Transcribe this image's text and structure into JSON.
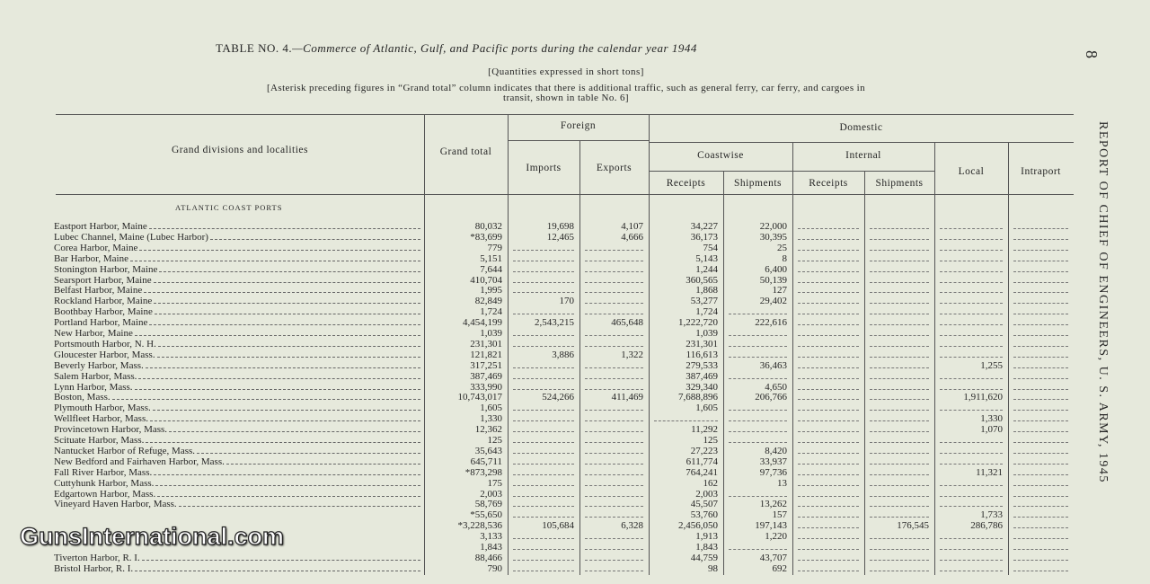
{
  "page_number": "8",
  "running_head": "REPORT OF CHIEF OF ENGINEERS, U. S. ARMY, 1945",
  "watermark": "GunsInternational.com",
  "table": {
    "label": "TABLE NO. 4.",
    "title": "—Commerce of Atlantic, Gulf, and Pacific ports during the calendar year 1944",
    "subtitle": "[Quantities expressed in short tons]",
    "note": "[Asterisk preceding figures in “Grand total” column indicates that there is additional traffic, such as general ferry, car ferry, and cargoes in transit, shown in table No. 6]",
    "headers": {
      "locality": "Grand divisions and localities",
      "grand_total": "Grand total",
      "foreign": "Foreign",
      "imports": "Imports",
      "exports": "Exports",
      "domestic": "Domestic",
      "coastwise": "Coastwise",
      "internal": "Internal",
      "receipts": "Receipts",
      "shipments": "Shipments",
      "local": "Local",
      "intraport": "Intraport"
    },
    "section": "ATLANTIC COAST PORTS",
    "rows": [
      [
        "Eastport Harbor, Maine",
        "80,032",
        "19,698",
        "4,107",
        "34,227",
        "22,000",
        null,
        null,
        null,
        null
      ],
      [
        "Lubec Channel, Maine (Lubec Harbor)",
        "*83,699",
        "12,465",
        "4,666",
        "36,173",
        "30,395",
        null,
        null,
        null,
        null
      ],
      [
        "Corea Harbor, Maine",
        "779",
        null,
        null,
        "754",
        "25",
        null,
        null,
        null,
        null
      ],
      [
        "Bar Harbor, Maine",
        "5,151",
        null,
        null,
        "5,143",
        "8",
        null,
        null,
        null,
        null
      ],
      [
        "Stonington Harbor, Maine",
        "7,644",
        null,
        null,
        "1,244",
        "6,400",
        null,
        null,
        null,
        null
      ],
      [
        "Searsport Harbor, Maine",
        "410,704",
        null,
        null,
        "360,565",
        "50,139",
        null,
        null,
        null,
        null
      ],
      [
        "Belfast Harbor, Maine",
        "1,995",
        null,
        null,
        "1,868",
        "127",
        null,
        null,
        null,
        null
      ],
      [
        "Rockland Harbor, Maine",
        "82,849",
        "170",
        null,
        "53,277",
        "29,402",
        null,
        null,
        null,
        null
      ],
      [
        "Boothbay Harbor, Maine",
        "1,724",
        null,
        null,
        "1,724",
        null,
        null,
        null,
        null,
        null
      ],
      [
        "Portland Harbor, Maine",
        "4,454,199",
        "2,543,215",
        "465,648",
        "1,222,720",
        "222,616",
        null,
        null,
        null,
        null
      ],
      [
        "New Harbor, Maine",
        "1,039",
        null,
        null,
        "1,039",
        null,
        null,
        null,
        null,
        null
      ],
      [
        "Portsmouth Harbor, N. H.",
        "231,301",
        null,
        null,
        "231,301",
        null,
        null,
        null,
        null,
        null
      ],
      [
        "Gloucester Harbor, Mass.",
        "121,821",
        "3,886",
        "1,322",
        "116,613",
        null,
        null,
        null,
        null,
        null
      ],
      [
        "Beverly Harbor, Mass.",
        "317,251",
        null,
        null,
        "279,533",
        "36,463",
        null,
        null,
        "1,255",
        null
      ],
      [
        "Salem Harbor, Mass.",
        "387,469",
        null,
        null,
        "387,469",
        null,
        null,
        null,
        null,
        null
      ],
      [
        "Lynn Harbor, Mass.",
        "333,990",
        null,
        null,
        "329,340",
        "4,650",
        null,
        null,
        null,
        null
      ],
      [
        "Boston, Mass.",
        "10,743,017",
        "524,266",
        "411,469",
        "7,688,896",
        "206,766",
        null,
        null,
        "1,911,620",
        null
      ],
      [
        "Plymouth Harbor, Mass.",
        "1,605",
        null,
        null,
        "1,605",
        null,
        null,
        null,
        null,
        null
      ],
      [
        "Wellfleet Harbor, Mass.",
        "1,330",
        null,
        null,
        null,
        null,
        null,
        null,
        "1,330",
        null
      ],
      [
        "Provincetown Harbor, Mass.",
        "12,362",
        null,
        null,
        "11,292",
        null,
        null,
        null,
        "1,070",
        null
      ],
      [
        "Scituate Harbor, Mass.",
        "125",
        null,
        null,
        "125",
        null,
        null,
        null,
        null,
        null
      ],
      [
        "Nantucket Harbor of Refuge, Mass.",
        "35,643",
        null,
        null,
        "27,223",
        "8,420",
        null,
        null,
        null,
        null
      ],
      [
        "New Bedford and Fairhaven Harbor, Mass.",
        "645,711",
        null,
        null,
        "611,774",
        "33,937",
        null,
        null,
        null,
        null
      ],
      [
        "Fall River Harbor, Mass.",
        "*873,298",
        null,
        null,
        "764,241",
        "97,736",
        null,
        null,
        "11,321",
        null
      ],
      [
        "Cuttyhunk Harbor, Mass.",
        "175",
        null,
        null,
        "162",
        "13",
        null,
        null,
        null,
        null
      ],
      [
        "Edgartown Harbor, Mass.",
        "2,003",
        null,
        null,
        "2,003",
        null,
        null,
        null,
        null,
        null
      ],
      [
        "Vineyard Haven Harbor, Mass.",
        "58,769",
        null,
        null,
        "45,507",
        "13,262",
        null,
        null,
        null,
        null
      ],
      [
        null,
        "*55,650",
        null,
        null,
        "53,760",
        "157",
        null,
        null,
        "1,733",
        null
      ],
      [
        null,
        "*3,228,536",
        "105,684",
        "6,328",
        "2,456,050",
        "197,143",
        null,
        "176,545",
        "286,786",
        null
      ],
      [
        null,
        "3,133",
        null,
        null,
        "1,913",
        "1,220",
        null,
        null,
        null,
        null
      ],
      [
        null,
        "1,843",
        null,
        null,
        "1,843",
        null,
        null,
        null,
        null,
        null
      ],
      [
        "Tiverton Harbor, R. I.",
        "88,466",
        null,
        null,
        "44,759",
        "43,707",
        null,
        null,
        null,
        null
      ],
      [
        "Bristol Harbor, R. I.",
        "790",
        null,
        null,
        "98",
        "692",
        null,
        null,
        null,
        null
      ]
    ]
  }
}
